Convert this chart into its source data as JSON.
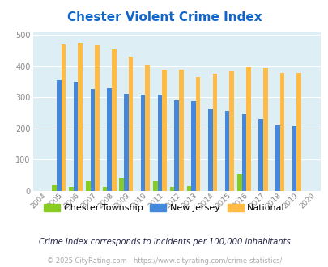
{
  "title": "Chester Violent Crime Index",
  "years": [
    "2004",
    "2005",
    "2006",
    "2007",
    "2008",
    "2009",
    "2010",
    "2011",
    "2012",
    "2013",
    "2014",
    "2015",
    "2016",
    "2017",
    "2018",
    "2019",
    "2020"
  ],
  "chester": [
    0,
    17,
    14,
    30,
    14,
    42,
    0,
    30,
    13,
    15,
    0,
    0,
    55,
    0,
    0,
    0,
    0
  ],
  "nj": [
    0,
    355,
    350,
    328,
    330,
    312,
    309,
    309,
    292,
    288,
    261,
    256,
    247,
    230,
    211,
    208,
    0
  ],
  "national": [
    0,
    469,
    474,
    467,
    455,
    432,
    405,
    389,
    389,
    367,
    376,
    383,
    397,
    394,
    380,
    379,
    0
  ],
  "chester_color": "#88cc22",
  "nj_color": "#4488dd",
  "national_color": "#ffbb44",
  "bg_color": "#ddeef5",
  "grid_color": "#ffffff",
  "title_color": "#1166cc",
  "yticks": [
    0,
    100,
    200,
    300,
    400,
    500
  ],
  "subtitle": "Crime Index corresponds to incidents per 100,000 inhabitants",
  "footer": "© 2025 CityRating.com - https://www.cityrating.com/crime-statistics/",
  "subtitle_color": "#222244",
  "footer_color": "#aaaaaa",
  "legend_labels": [
    "Chester Township",
    "New Jersey",
    "National"
  ]
}
